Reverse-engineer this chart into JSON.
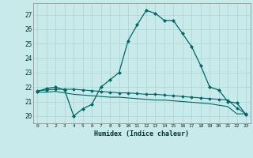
{
  "bg_color": "#c8eaea",
  "grid_color": "#b0d8d8",
  "line_color": "#006666",
  "xlabel": "Humidex (Indice chaleur)",
  "ylim": [
    19.5,
    27.8
  ],
  "xlim": [
    -0.5,
    23.5
  ],
  "yticks": [
    20,
    21,
    22,
    23,
    24,
    25,
    26,
    27
  ],
  "xticks": [
    0,
    1,
    2,
    3,
    4,
    5,
    6,
    7,
    8,
    9,
    10,
    11,
    12,
    13,
    14,
    15,
    16,
    17,
    18,
    19,
    20,
    21,
    22,
    23
  ],
  "series1_x": [
    0,
    1,
    2,
    3,
    4,
    5,
    6,
    7,
    8,
    9,
    10,
    11,
    12,
    13,
    14,
    15,
    16,
    17,
    18,
    19,
    20,
    21,
    22,
    23
  ],
  "series1_y": [
    21.7,
    21.9,
    22.0,
    21.8,
    20.0,
    20.5,
    20.8,
    22.0,
    22.5,
    23.0,
    25.2,
    26.3,
    27.3,
    27.1,
    26.6,
    26.6,
    25.7,
    24.8,
    23.5,
    22.0,
    21.8,
    21.0,
    20.9,
    20.1
  ],
  "series2_x": [
    0,
    1,
    2,
    3,
    4,
    5,
    6,
    7,
    8,
    9,
    10,
    11,
    12,
    13,
    14,
    15,
    16,
    17,
    18,
    19,
    20,
    21,
    22,
    23
  ],
  "series2_y": [
    21.75,
    21.8,
    21.85,
    21.85,
    21.85,
    21.8,
    21.75,
    21.7,
    21.65,
    21.6,
    21.6,
    21.55,
    21.5,
    21.5,
    21.45,
    21.4,
    21.35,
    21.3,
    21.25,
    21.2,
    21.15,
    21.1,
    20.55,
    20.15
  ],
  "series3_x": [
    0,
    1,
    2,
    3,
    4,
    5,
    6,
    7,
    8,
    9,
    10,
    11,
    12,
    13,
    14,
    15,
    16,
    17,
    18,
    19,
    20,
    21,
    22,
    23
  ],
  "series3_y": [
    21.65,
    21.65,
    21.7,
    21.6,
    21.5,
    21.45,
    21.4,
    21.35,
    21.3,
    21.3,
    21.25,
    21.2,
    21.15,
    21.1,
    21.1,
    21.05,
    21.0,
    20.95,
    20.9,
    20.85,
    20.75,
    20.65,
    20.15,
    20.15
  ]
}
